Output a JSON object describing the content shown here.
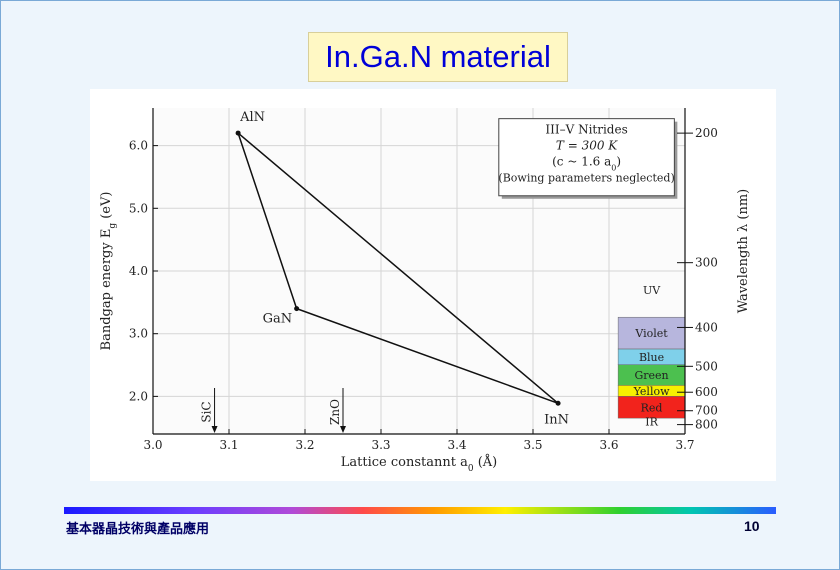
{
  "slide": {
    "title": "In.Ga.N material",
    "footer": "基本器晶技術與產品應用",
    "page_number": "10"
  },
  "chart_data": {
    "type": "scatter",
    "xlabel": "Lattice  constannt  a",
    "xlabel_sub": "0",
    "xlabel_unit": "(Å)",
    "ylabel": "Bandgap  energy  E",
    "ylabel_sub": "g",
    "ylabel_unit": "(eV)",
    "y2label": "Wavelength  λ  (nm)",
    "xlim": [
      3.0,
      3.7
    ],
    "ylim": [
      1.4,
      6.6
    ],
    "x_ticks": [
      "3.0",
      "3.1",
      "3.2",
      "3.3",
      "3.4",
      "3.5",
      "3.6",
      "3.7"
    ],
    "y_ticks": [
      "2.0",
      "3.0",
      "4.0",
      "5.0",
      "6.0"
    ],
    "y2_ticks": [
      "200",
      "300",
      "400",
      "500",
      "600",
      "700",
      "800"
    ],
    "grid": true,
    "points": [
      {
        "label": "AlN",
        "x": 3.112,
        "y": 6.2
      },
      {
        "label": "GaN",
        "x": 3.189,
        "y": 3.4
      },
      {
        "label": "InN",
        "x": 3.533,
        "y": 1.89
      }
    ],
    "annotations": {
      "legend_lines": [
        "III–V  Nitrides",
        "T = 300 K",
        "(c  ~ 1.6 a",
        "(Bowing parameters neglected)"
      ],
      "legend_sub": "0",
      "legend_close": ")",
      "substrates": [
        {
          "label": "SiC",
          "x": 3.081
        },
        {
          "label": "ZnO",
          "x": 3.25
        }
      ],
      "spectrum": [
        {
          "name": "UV",
          "color": "#ffffff",
          "from_nm": 300,
          "to_nm": 380
        },
        {
          "name": "Violet",
          "color": "#b7b6dd",
          "from_nm": 380,
          "to_nm": 450
        },
        {
          "name": "Blue",
          "color": "#7fd0ea",
          "from_nm": 450,
          "to_nm": 495
        },
        {
          "name": "Green",
          "color": "#4cc04f",
          "from_nm": 495,
          "to_nm": 570
        },
        {
          "name": "Yellow",
          "color": "#f7f000",
          "from_nm": 570,
          "to_nm": 620
        },
        {
          "name": "Red",
          "color": "#f2231c",
          "from_nm": 620,
          "to_nm": 750
        },
        {
          "name": "IR",
          "color": "#ffffff",
          "from_nm": 750,
          "to_nm": 800
        }
      ]
    }
  }
}
